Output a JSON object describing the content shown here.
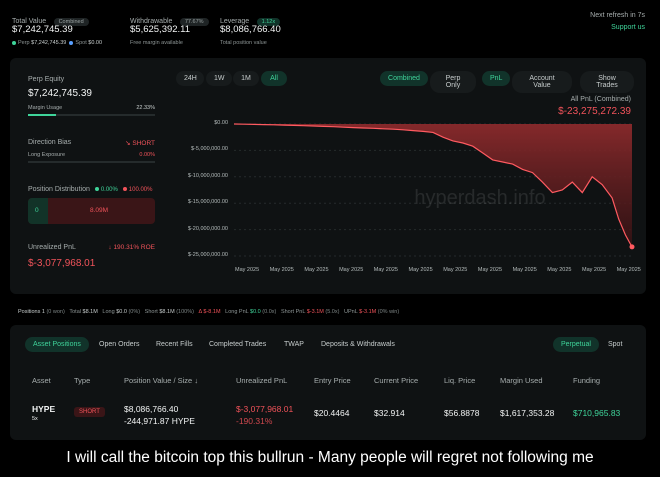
{
  "header": {
    "total_value": {
      "label": "Total Value",
      "badge": "Combined",
      "value": "$7,242,745.39",
      "perp_label": "Perp",
      "perp_value": "$7,242,745.39",
      "spot_label": "Spot",
      "spot_value": "$0.00"
    },
    "withdrawable": {
      "label": "Withdrawable",
      "badge": "77.67%",
      "value": "$5,625,392.11",
      "sub": "Free margin available"
    },
    "leverage": {
      "label": "Leverage",
      "badge": "1.12x",
      "value": "$8,086,766.40",
      "sub": "Total position value"
    },
    "refresh": "Next refresh in 7s",
    "support": "Support us"
  },
  "left_panel": {
    "perp_equity_label": "Perp Equity",
    "perp_equity_value": "$7,242,745.39",
    "margin_usage_label": "Margin Usage",
    "margin_usage_value": "22.33%",
    "margin_usage_fraction": 0.2233,
    "direction_bias_label": "Direction Bias",
    "direction_bias_value": "SHORT",
    "long_exposure_label": "Long Exposure",
    "long_exposure_value": "0.00%",
    "position_distribution_label": "Position Distribution",
    "dist_long": "0.00%",
    "dist_short": "100.00%",
    "dist_bar_left": "0",
    "dist_bar_right": "8.09M",
    "unrealized_label": "Unrealized PnL",
    "unrealized_roe": "190.31% ROE",
    "unrealized_value": "$-3,077,968.01"
  },
  "chart_controls": {
    "ranges": [
      "24H",
      "1W",
      "1M",
      "All"
    ],
    "active_range": "All",
    "modes": [
      "Combined",
      "Perp Only"
    ],
    "active_mode": "Combined",
    "metrics": [
      "PnL",
      "Account Value"
    ],
    "active_metric": "PnL",
    "show_trades": "Show Trades",
    "all_pnl_label": "All PnL (Combined)",
    "all_pnl_value": "$-23,275,272.39",
    "watermark": "hyperdash.info"
  },
  "chart_data": {
    "type": "area",
    "title": "",
    "xlabel": "",
    "ylabel": "",
    "ylim": [
      -25000000,
      0
    ],
    "y_ticks": [
      "$0.00",
      "$-5,000,000.00",
      "$-10,000,000.00",
      "$-15,000,000.00",
      "$-20,000,000.00",
      "$-25,000,000.00"
    ],
    "y_tick_values": [
      0,
      -5000000,
      -10000000,
      -15000000,
      -20000000,
      -25000000
    ],
    "x_ticks": [
      "May 2025",
      "May 2025",
      "May 2025",
      "May 2025",
      "May 2025",
      "May 2025",
      "May 2025",
      "May 2025",
      "May 2025",
      "May 2025",
      "May 2025",
      "May 2025"
    ],
    "x": [
      0,
      3,
      6,
      9,
      12,
      15,
      18,
      21,
      24,
      27,
      30,
      33,
      36,
      39,
      42,
      45,
      48,
      51,
      54,
      57,
      60,
      63,
      66,
      69,
      72,
      75,
      78,
      81,
      84,
      87,
      90,
      93,
      96,
      99,
      102,
      105,
      108,
      111,
      114,
      116,
      118,
      120
    ],
    "series": [
      {
        "values": [
          0,
          -40000,
          -80000,
          -120000,
          -150000,
          -200000,
          -260000,
          -320000,
          -380000,
          -450000,
          -520000,
          -600000,
          -680000,
          -760000,
          -820000,
          -900000,
          -980000,
          -1100000,
          -1250000,
          -1400000,
          -1600000,
          -2500000,
          -3200000,
          -3600000,
          -4200000,
          -5500000,
          -6800000,
          -7200000,
          -7600000,
          -8600000,
          -9200000,
          -11000000,
          -13000000,
          -12500000,
          -11000000,
          -13000000,
          -10000000,
          -11500000,
          -14000000,
          -18000000,
          -21000000,
          -23275272
        ]
      }
    ],
    "grid": true,
    "legend": "none"
  },
  "positions_bar": {
    "positions": "Positions 1",
    "positions_sub": "(0 won)",
    "total_label": "Total",
    "total_value": "$8.1M",
    "long_label": "Long",
    "long_value": "$0.0",
    "long_pct": "(0%)",
    "short_label": "Short",
    "short_value": "$8.1M",
    "short_pct": "(100%)",
    "delta_label": "Δ",
    "delta_value": "$-8.1M",
    "longpnl_label": "Long PnL",
    "longpnl_value": "$0.0",
    "longpnl_sub": "(0.0x)",
    "shortpnl_label": "Short PnL",
    "shortpnl_value": "$-3.1M",
    "shortpnl_sub": "(5.0x)",
    "upnl_label": "UPnL",
    "upnl_value": "$-3.1M",
    "upnl_sub": "(0% win)"
  },
  "tabs": {
    "items": [
      "Asset Positions",
      "Open Orders",
      "Recent Fills",
      "Completed Trades",
      "TWAP",
      "Deposits & Withdrawals"
    ],
    "active": "Asset Positions",
    "right": [
      "Perpetual",
      "Spot"
    ],
    "right_active": "Perpetual"
  },
  "table": {
    "headers": [
      "Asset",
      "Type",
      "Position Value / Size",
      "Unrealized PnL",
      "Entry Price",
      "Current Price",
      "Liq. Price",
      "Margin Used",
      "Funding"
    ],
    "sort_icon": "↓",
    "row": {
      "asset": "HYPE",
      "leverage": "5x",
      "type": "SHORT",
      "position_value": "$8,086,766.40",
      "position_size": "-244,971.87 HYPE",
      "upnl": "$-3,077,968.01",
      "upnl_pct": "-190.31%",
      "entry": "$20.4464",
      "current": "$32.914",
      "liq": "$56.8878",
      "margin": "$1,617,353.28",
      "funding": "$710,965.83"
    }
  },
  "caption": "I will call the bitcoin top this bullrun - Many people will regret not following me"
}
